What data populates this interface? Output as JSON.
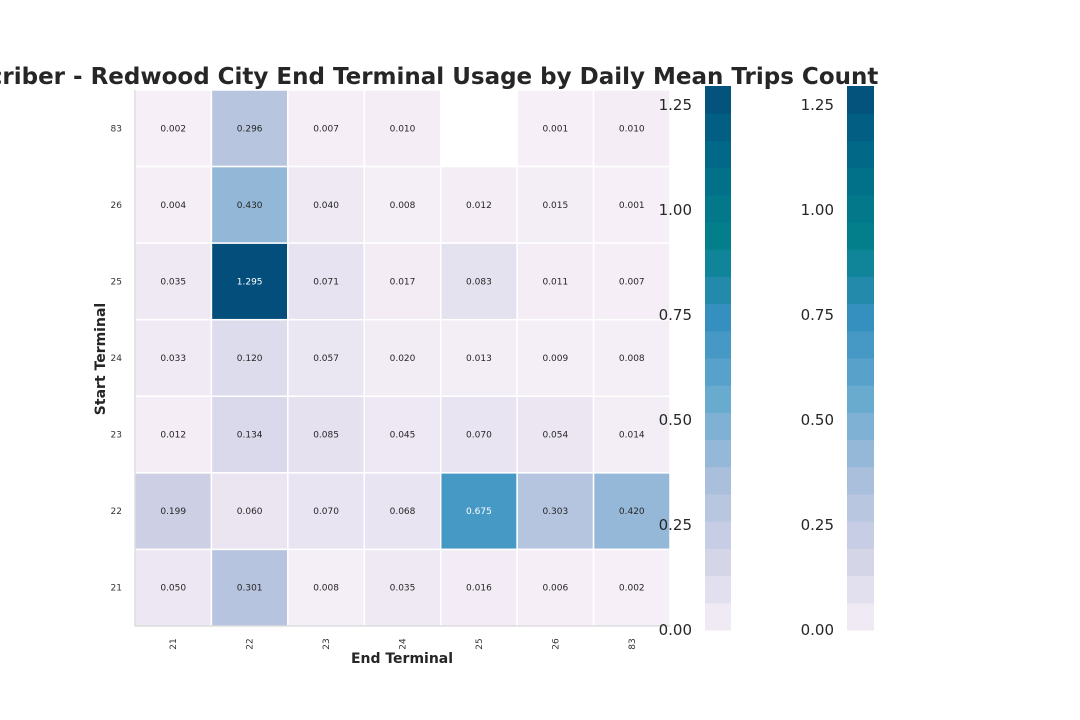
{
  "chart_data": {
    "type": "heatmap",
    "title": "Subscriber - Redwood City End Terminal Usage by Daily Mean Trips Count",
    "xlabel": "End Terminal",
    "ylabel": "Start Terminal",
    "x_categories": [
      "21",
      "22",
      "23",
      "24",
      "25",
      "26",
      "83"
    ],
    "y_categories": [
      "83",
      "26",
      "25",
      "24",
      "23",
      "22",
      "21"
    ],
    "values": [
      [
        0.002,
        0.296,
        0.007,
        0.01,
        null,
        0.001,
        0.01
      ],
      [
        0.004,
        0.43,
        0.04,
        0.008,
        0.012,
        0.015,
        0.001
      ],
      [
        0.035,
        1.295,
        0.071,
        0.017,
        0.083,
        0.011,
        0.007
      ],
      [
        0.033,
        0.12,
        0.057,
        0.02,
        0.013,
        0.009,
        0.008
      ],
      [
        0.012,
        0.134,
        0.085,
        0.045,
        0.07,
        0.054,
        0.014
      ],
      [
        0.199,
        0.06,
        0.07,
        0.068,
        0.675,
        0.303,
        0.42
      ],
      [
        0.05,
        0.301,
        0.008,
        0.035,
        0.016,
        0.006,
        0.002
      ]
    ],
    "value_labels": [
      [
        "0.002",
        "0.296",
        "0.007",
        "0.010",
        "",
        "0.001",
        "0.010"
      ],
      [
        "0.004",
        "0.430",
        "0.040",
        "0.008",
        "0.012",
        "0.015",
        "0.001"
      ],
      [
        "0.035",
        "1.295",
        "0.071",
        "0.017",
        "0.083",
        "0.011",
        "0.007"
      ],
      [
        "0.033",
        "0.120",
        "0.057",
        "0.020",
        "0.013",
        "0.009",
        "0.008"
      ],
      [
        "0.012",
        "0.134",
        "0.085",
        "0.045",
        "0.070",
        "0.054",
        "0.014"
      ],
      [
        "0.199",
        "0.060",
        "0.070",
        "0.068",
        "0.675",
        "0.303",
        "0.420"
      ],
      [
        "0.050",
        "0.301",
        "0.008",
        "0.035",
        "0.016",
        "0.006",
        "0.002"
      ]
    ],
    "colorbar": {
      "vmin": 0.0,
      "vmax": 1.295,
      "ticks": [
        "0.00",
        "0.25",
        "0.50",
        "0.75",
        "1.00",
        "1.25"
      ],
      "tick_values": [
        0.0,
        0.25,
        0.5,
        0.75,
        1.0,
        1.25
      ],
      "count": 2
    },
    "colormap": [
      "#f6eff7",
      "#d0d1e6",
      "#a6bddb",
      "#67a9cf",
      "#3690c0",
      "#02818a",
      "#016c89",
      "#034e7b"
    ],
    "grid": false,
    "legend": "none"
  }
}
